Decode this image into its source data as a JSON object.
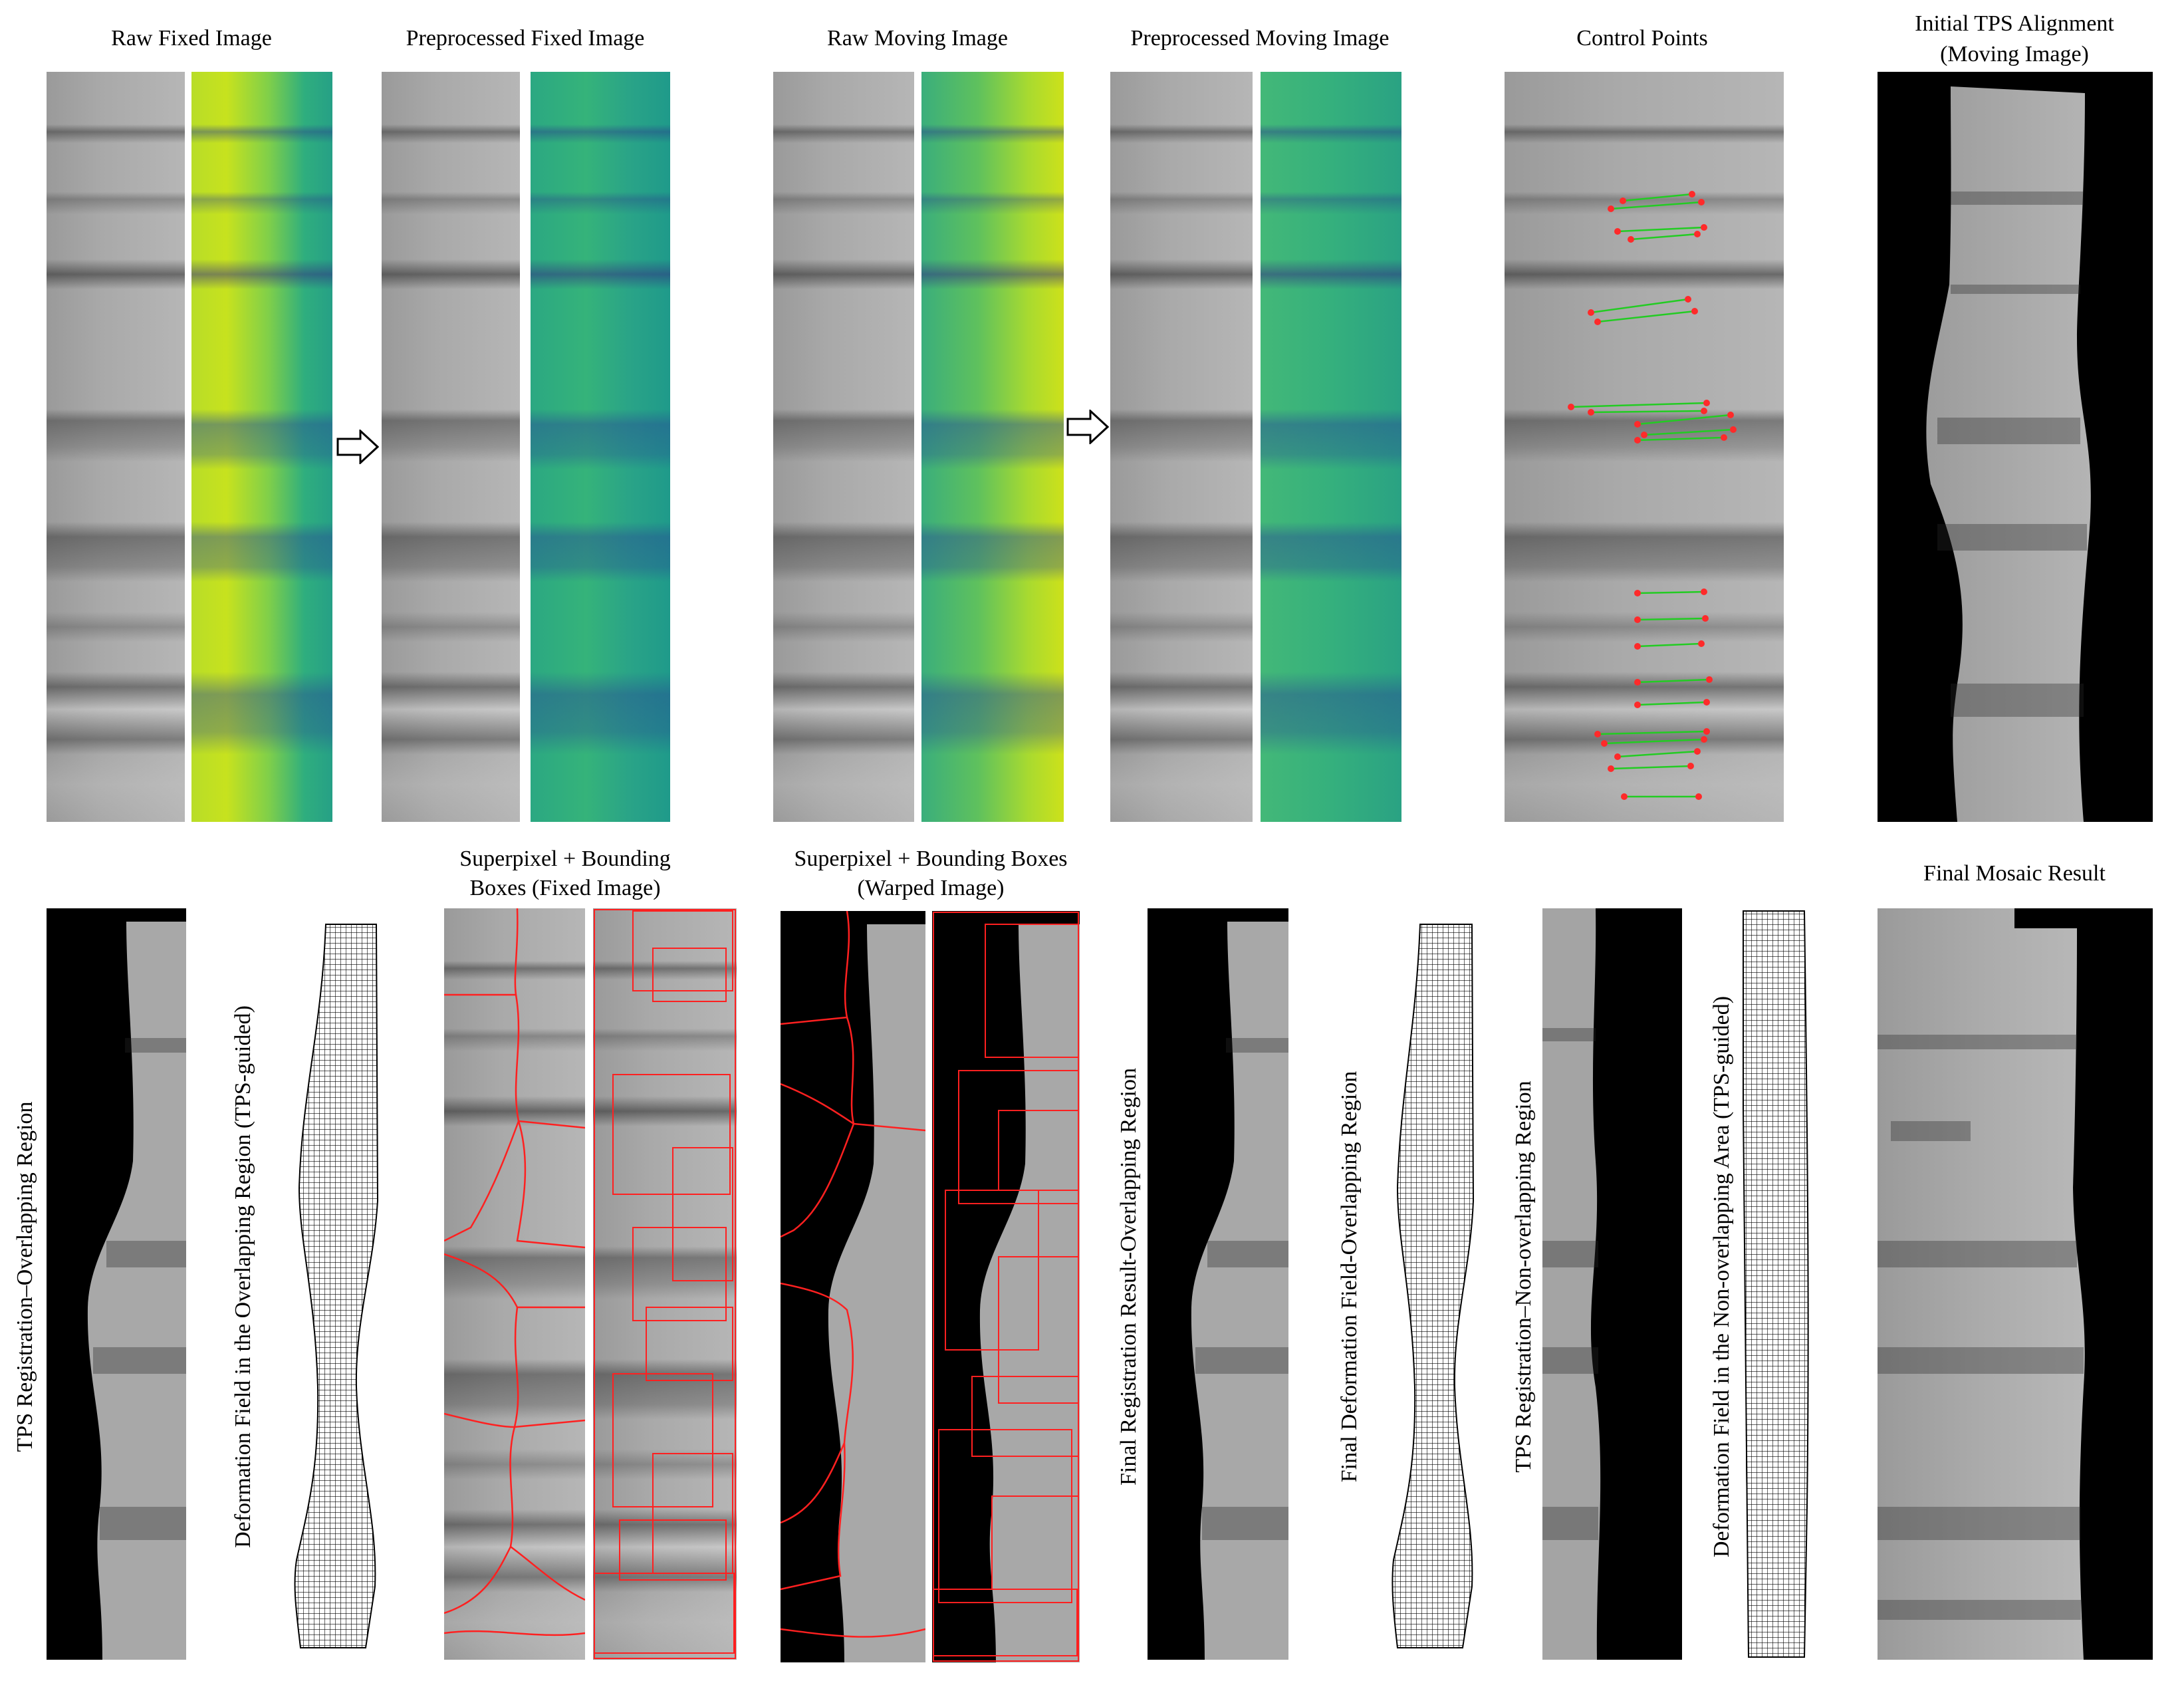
{
  "titles": {
    "raw_fixed": "Raw Fixed Image",
    "pre_fixed": "Preprocessed Fixed Image",
    "raw_moving": "Raw Moving Image",
    "pre_moving": "Preprocessed Moving Image",
    "control_points": "Control Points",
    "initial_tps_1": "Initial TPS Alignment",
    "initial_tps_2": "(Moving Image)",
    "sp_fixed_1": "Superpixel + Bounding",
    "sp_fixed_2": "Boxes (Fixed Image)",
    "sp_warped_1": "Superpixel + Bounding Boxes",
    "sp_warped_2": "(Warped Image)",
    "final_mosaic": "Final Mosaic Result"
  },
  "vertical_labels": {
    "tps_overlap": "TPS Registration–Overlapping Region",
    "deform_overlap": "Deformation Field in the Overlapping Region (TPS-guided)",
    "final_reg_overlap": "Final Registration Result-Overlapping Region",
    "final_deform_overlap": "Final Deformation Field-Overlapping Region",
    "tps_nonoverlap": "TPS Registration–Non-overlapping Region",
    "deform_nonoverlap": "Deformation Field in the Non-overlapping Area (TPS-guided)"
  },
  "colors": {
    "match_line": "#22cc22",
    "match_point": "#ff2a2a",
    "superpixel_edge": "#ff2020",
    "grid_line": "#000000"
  }
}
